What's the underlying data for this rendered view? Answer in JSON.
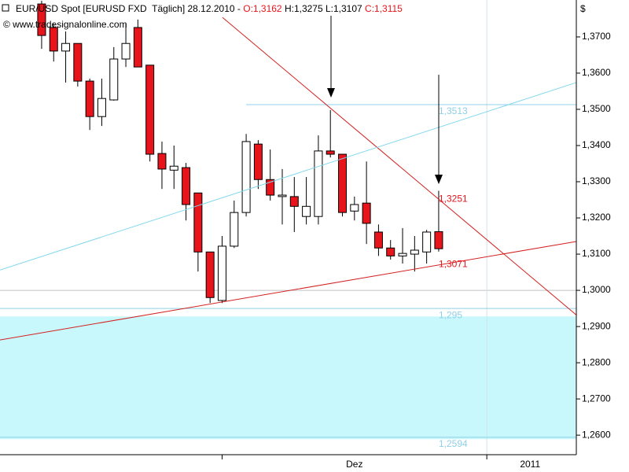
{
  "chart_data": {
    "type": "candlestick",
    "title": "EUR/USD Spot [EURUSD FXD  Täglich] 28.12.2010 - ",
    "ohlc_open": "O:1,3162",
    "ohlc_high_low": "H:1,3275 L:1,3107",
    "ohlc_close": "C:1,3115",
    "watermark": "© www.tradesignalonline.com",
    "currency": "$",
    "open": [
      1.3791,
      1.3726,
      1.3661,
      1.3682,
      1.3578,
      1.348,
      1.3526,
      1.3639,
      1.3726,
      1.3622,
      1.3378,
      1.3332,
      1.3339,
      1.3269,
      1.3106,
      1.2972,
      1.3122,
      1.3215,
      1.3404,
      1.3306,
      1.3259,
      1.3259,
      1.3204,
      1.3204,
      1.3385,
      1.3376,
      1.3219,
      1.3241,
      1.3161,
      1.3117,
      1.3095,
      1.31,
      1.3106,
      1.3162
    ],
    "high": [
      1.38,
      1.3737,
      1.3715,
      1.3682,
      1.3585,
      1.3585,
      1.3672,
      1.3737,
      1.3748,
      1.3622,
      1.3411,
      1.34,
      1.3352,
      1.3269,
      1.3106,
      1.315,
      1.3248,
      1.3432,
      1.3415,
      1.3389,
      1.3335,
      1.3313,
      1.3313,
      1.3428,
      1.3498,
      1.3376,
      1.3259,
      1.3356,
      1.3182,
      1.3139,
      1.3172,
      1.315,
      1.3167,
      1.3275
    ],
    "low": [
      1.3667,
      1.3632,
      1.3574,
      1.3563,
      1.3443,
      1.3454,
      1.3524,
      1.3617,
      1.3617,
      1.3356,
      1.328,
      1.328,
      1.3193,
      1.3052,
      1.2965,
      1.2965,
      1.3117,
      1.3204,
      1.328,
      1.3248,
      1.3182,
      1.3161,
      1.3182,
      1.3182,
      1.3367,
      1.3204,
      1.3193,
      1.3128,
      1.3095,
      1.3085,
      1.3074,
      1.3052,
      1.3074,
      1.3107
    ],
    "close": [
      1.3704,
      1.3661,
      1.3682,
      1.3578,
      1.348,
      1.353,
      1.3639,
      1.3682,
      1.3617,
      1.3376,
      1.3335,
      1.3343,
      1.3237,
      1.3106,
      1.298,
      1.3122,
      1.3215,
      1.3411,
      1.3306,
      1.3263,
      1.3263,
      1.3232,
      1.3232,
      1.3385,
      1.3376,
      1.3215,
      1.3237,
      1.3185,
      1.3117,
      1.3095,
      1.3102,
      1.3111,
      1.3161,
      1.3115
    ],
    "up_color": "#ffffff",
    "down_color": "#e8141b",
    "xlim": [
      -2.46,
      45.44
    ],
    "xticks": [
      {
        "value": 27,
        "label": "Dez"
      },
      {
        "value": 41.6,
        "label": "2011"
      }
    ],
    "xdividers": [
      16,
      38
    ],
    "ylim": [
      1.2546,
      1.3802
    ],
    "yticks": [
      {
        "value": 1.26,
        "label": "1,2600"
      },
      {
        "value": 1.27,
        "label": "1,2700"
      },
      {
        "value": 1.28,
        "label": "1,2800"
      },
      {
        "value": 1.29,
        "label": "1,2900"
      },
      {
        "value": 1.3,
        "label": "1,3000"
      },
      {
        "value": 1.31,
        "label": "1,3100"
      },
      {
        "value": 1.32,
        "label": "1,3200"
      },
      {
        "value": 1.33,
        "label": "1,3300"
      },
      {
        "value": 1.34,
        "label": "1,3400"
      },
      {
        "value": 1.35,
        "label": "1,3500"
      },
      {
        "value": 1.36,
        "label": "1,3600"
      },
      {
        "value": 1.37,
        "label": "1,3700"
      }
    ],
    "grid_values": [
      1.3
    ],
    "zone": [
      1.2928,
      1.2589
    ],
    "zone_color": "#c8f8fc",
    "levels": [
      {
        "value": 1.3513,
        "label": "1,3513"
      },
      {
        "value": 1.295,
        "label": "1,295"
      },
      {
        "value": 1.2594,
        "label": "1,2594"
      }
    ],
    "level_color": "#8fd0e8",
    "lines": [
      {
        "from": [
          16.03,
          1.3754
        ],
        "to": [
          45.44,
          1.2932
        ],
        "color": "#d42020"
      },
      {
        "from": [
          -2.46,
          1.2863
        ],
        "to": [
          45.44,
          1.3135
        ],
        "color": "#d42020"
      },
      {
        "from": [
          -2.46,
          1.3056
        ],
        "to": [
          45.44,
          1.3574
        ],
        "color": "#80d8ec"
      }
    ],
    "annotations": [
      {
        "text": "1,3251",
        "value": 1.3251,
        "color": "#e8141b"
      },
      {
        "text": "1,3071",
        "value": 1.3071,
        "color": "#e8141b"
      }
    ]
  }
}
